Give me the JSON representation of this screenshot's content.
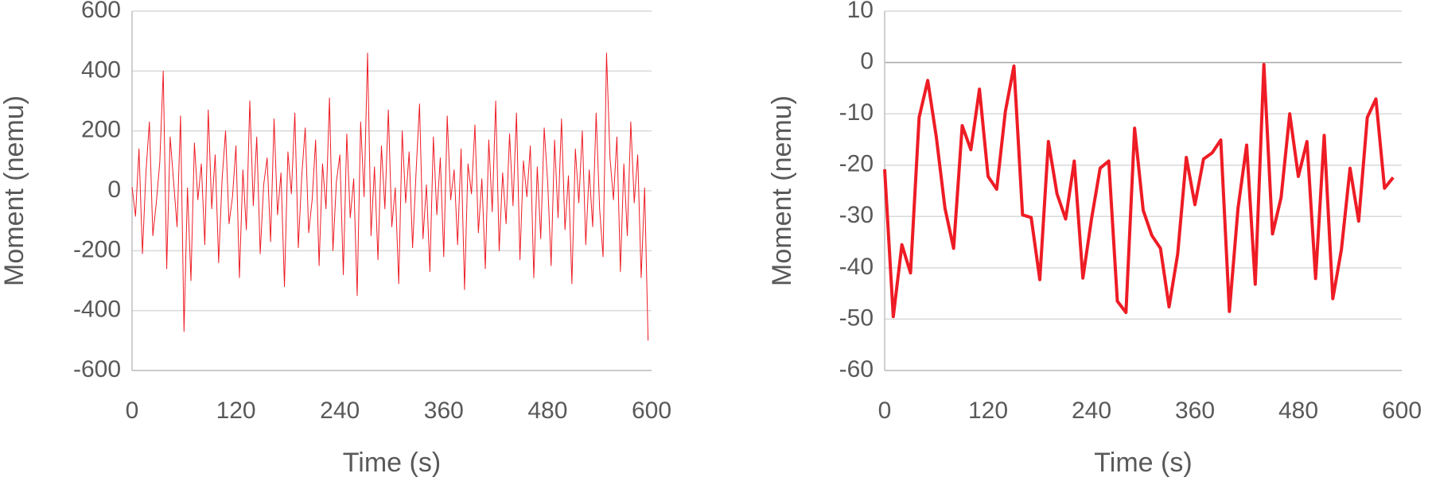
{
  "chart_data": [
    {
      "type": "line",
      "color": "#ee1c25",
      "xlabel": "Time (s)",
      "ylabel": "Moment (nemu)",
      "xlim": [
        0,
        600
      ],
      "xticks": [
        0,
        120,
        240,
        360,
        480,
        600
      ],
      "ylim": [
        -600,
        600
      ],
      "yticks": [
        -600,
        -400,
        -200,
        0,
        200,
        400,
        600
      ],
      "grid": true,
      "x": [
        0,
        4,
        8,
        12,
        16,
        20,
        24,
        28,
        32,
        36,
        40,
        44,
        48,
        52,
        56,
        60,
        64,
        68,
        72,
        76,
        80,
        84,
        88,
        92,
        96,
        100,
        104,
        108,
        112,
        116,
        120,
        124,
        128,
        132,
        136,
        140,
        144,
        148,
        152,
        156,
        160,
        164,
        168,
        172,
        176,
        180,
        184,
        188,
        192,
        196,
        200,
        204,
        208,
        212,
        216,
        220,
        224,
        228,
        232,
        236,
        240,
        244,
        248,
        252,
        256,
        260,
        264,
        268,
        272,
        276,
        280,
        284,
        288,
        292,
        296,
        300,
        304,
        308,
        312,
        316,
        320,
        324,
        328,
        332,
        336,
        340,
        344,
        348,
        352,
        356,
        360,
        364,
        368,
        372,
        376,
        380,
        384,
        388,
        392,
        396,
        400,
        404,
        408,
        412,
        416,
        420,
        424,
        428,
        432,
        436,
        440,
        444,
        448,
        452,
        456,
        460,
        464,
        468,
        472,
        476,
        480,
        484,
        488,
        492,
        496,
        500,
        504,
        508,
        512,
        516,
        520,
        524,
        528,
        532,
        536,
        540,
        544,
        548,
        552,
        556,
        560,
        564,
        568,
        572,
        576,
        580,
        584,
        588,
        592,
        596
      ],
      "values": [
        12,
        -85,
        140,
        -210,
        60,
        230,
        -150,
        -40,
        95,
        400,
        -260,
        180,
        30,
        -120,
        250,
        -470,
        10,
        -300,
        160,
        -30,
        90,
        -180,
        270,
        -60,
        120,
        -240,
        40,
        200,
        -110,
        -20,
        150,
        -290,
        70,
        -130,
        300,
        -50,
        180,
        -210,
        20,
        110,
        -170,
        240,
        -80,
        60,
        -320,
        130,
        -10,
        260,
        -190,
        50,
        210,
        -140,
        -30,
        170,
        -250,
        90,
        -60,
        310,
        -200,
        30,
        120,
        -280,
        190,
        -90,
        40,
        -350,
        230,
        -20,
        460,
        -150,
        80,
        -230,
        150,
        -60,
        270,
        -120,
        10,
        -310,
        200,
        -40,
        130,
        -190,
        60,
        290,
        -160,
        20,
        -270,
        180,
        -80,
        110,
        -220,
        250,
        -30,
        70,
        -180,
        140,
        -330,
        90,
        -10,
        220,
        -140,
        40,
        -260,
        170,
        -70,
        300,
        -200,
        60,
        -110,
        190,
        -50,
        260,
        -230,
        100,
        -20,
        150,
        -290,
        80,
        -160,
        210,
        30,
        -250,
        170,
        -90,
        240,
        -130,
        50,
        -310,
        140,
        -40,
        200,
        -180,
        70,
        -120,
        260,
        -60,
        -220,
        460,
        110,
        -30,
        180,
        -270,
        90,
        -150,
        230,
        -40,
        120,
        -290,
        10,
        -500
      ]
    },
    {
      "type": "line",
      "color": "#ee1c25",
      "xlabel": "Time (s)",
      "ylabel": "Moment (nemu)",
      "xlim": [
        0,
        600
      ],
      "xticks": [
        0,
        120,
        240,
        360,
        480,
        600
      ],
      "ylim": [
        -60,
        10
      ],
      "yticks": [
        -60,
        -50,
        -40,
        -30,
        -20,
        -10,
        0,
        10
      ],
      "grid": true,
      "x": [
        0,
        10,
        20,
        30,
        40,
        50,
        60,
        70,
        80,
        90,
        100,
        110,
        120,
        130,
        140,
        150,
        160,
        170,
        180,
        190,
        200,
        210,
        220,
        230,
        240,
        250,
        260,
        270,
        280,
        290,
        300,
        310,
        320,
        330,
        340,
        350,
        360,
        370,
        380,
        390,
        400,
        410,
        420,
        430,
        440,
        450,
        460,
        470,
        480,
        490,
        500,
        510,
        520,
        530,
        540,
        550,
        560,
        570,
        580,
        590
      ],
      "values": [
        -20.8,
        -49.5,
        -35.5,
        -41,
        -10.7,
        -3.5,
        -14.6,
        -28.4,
        -36.2,
        -12.3,
        -17,
        -5.2,
        -22.2,
        -24.7,
        -9.6,
        -0.7,
        -29.7,
        -30.2,
        -42.3,
        -15.4,
        -25.6,
        -30.5,
        -19.2,
        -42,
        -30.5,
        -20.6,
        -19.2,
        -46.5,
        -48.7,
        -12.8,
        -28.8,
        -33.7,
        -36.2,
        -47.6,
        -37.3,
        -18.5,
        -27.7,
        -18.8,
        -17.6,
        -15.1,
        -48.5,
        -28.4,
        -16.1,
        -43.2,
        -0.4,
        -33.4,
        -26.3,
        -10,
        -22.2,
        -15.4,
        -42.1,
        -14.2,
        -46,
        -36.4,
        -20.6,
        -30.9,
        -10.7,
        -7.1,
        -24.5,
        -22.4
      ]
    }
  ]
}
